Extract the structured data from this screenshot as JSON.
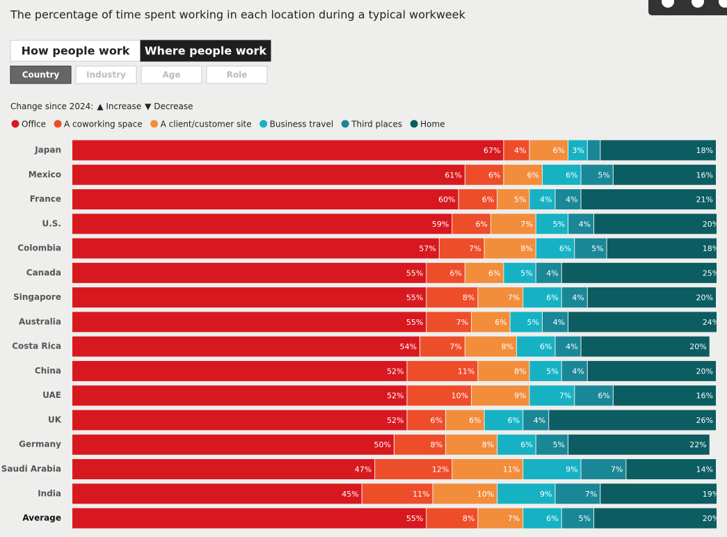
{
  "header": {
    "title": "The percentage of time spent working in each location during a typical workweek",
    "tabs": [
      "How people work",
      "Where people work"
    ],
    "active_tab": 1,
    "filters": [
      "Country",
      "Industry",
      "Age",
      "Role"
    ],
    "active_filter": 0,
    "change_note": {
      "label": "Change since 2024:",
      "increase": "▲ Increase",
      "decrease": "▼ Decrease"
    }
  },
  "chart_data": {
    "type": "stacked-bar-horizontal",
    "categories": [
      "Japan",
      "Mexico",
      "France",
      "U.S.",
      "Colombia",
      "Canada",
      "Singapore",
      "Australia",
      "Costa Rica",
      "China",
      "UAE",
      "UK",
      "Germany",
      "Saudi Arabia",
      "India",
      "Average"
    ],
    "xlim": [
      0,
      100
    ],
    "series": [
      {
        "name": "Office",
        "color": "#d7191f",
        "values": [
          67,
          61,
          60,
          59,
          57,
          55,
          55,
          55,
          54,
          52,
          52,
          52,
          50,
          47,
          45,
          55
        ],
        "value_labels": [
          "67%",
          "61%",
          "60%",
          "59%",
          "57%",
          "55%",
          "55%",
          "55%",
          "54%",
          "52%",
          "52%",
          "52%",
          "50%",
          "47%",
          "45%",
          "55%"
        ]
      },
      {
        "name": "A coworking space",
        "color": "#ee4d2a",
        "values": [
          4,
          6,
          6,
          6,
          7,
          6,
          8,
          7,
          7,
          11,
          10,
          6,
          8,
          12,
          11,
          8
        ],
        "value_labels": [
          "4%",
          "6%",
          "6%",
          "6%",
          "7%",
          "6%",
          "8%",
          "7%",
          "7%",
          "11%",
          "10%",
          "6%",
          "8%",
          "12%",
          "11%",
          "8%"
        ]
      },
      {
        "name": "A client/customer site",
        "color": "#f28d3c",
        "values": [
          6,
          6,
          5,
          7,
          8,
          6,
          7,
          6,
          8,
          8,
          9,
          6,
          8,
          11,
          10,
          7
        ],
        "value_labels": [
          "6%",
          "6%",
          "5%",
          "7%",
          "8%",
          "6%",
          "7%",
          "6%",
          "8%",
          "8%",
          "9%",
          "6%",
          "8%",
          "11%",
          "10%",
          "7%"
        ]
      },
      {
        "name": "Business travel",
        "color": "#16b2c4",
        "values": [
          3,
          6,
          4,
          5,
          6,
          5,
          6,
          5,
          6,
          5,
          7,
          6,
          6,
          9,
          9,
          6
        ],
        "value_labels": [
          "3%",
          "6%",
          "4%",
          "5%",
          "6%",
          "5%",
          "6%",
          "5%",
          "6%",
          "5%",
          "7%",
          "6%",
          "6%",
          "9%",
          "9%",
          "6%"
        ]
      },
      {
        "name": "Third places",
        "color": "#1a8797",
        "values": [
          2,
          5,
          4,
          4,
          5,
          4,
          4,
          4,
          4,
          4,
          6,
          4,
          5,
          7,
          7,
          5
        ],
        "value_labels": [
          null,
          "5%",
          "4%",
          "4%",
          "5%",
          "4%",
          "4%",
          "4%",
          "4%",
          "4%",
          "6%",
          "4%",
          "5%",
          "7%",
          "7%",
          "5%"
        ]
      },
      {
        "name": "Home",
        "color": "#0b5d62",
        "values": [
          18,
          16,
          21,
          20,
          18,
          25,
          20,
          24,
          20,
          20,
          16,
          26,
          22,
          14,
          19,
          20
        ],
        "value_labels": [
          "18%",
          "16%",
          "21%",
          "20%",
          "18%",
          "25%",
          "20%",
          "24%",
          "20%",
          "20%",
          "16%",
          "26%",
          "22%",
          "14%",
          "19%",
          "20%"
        ]
      }
    ]
  }
}
